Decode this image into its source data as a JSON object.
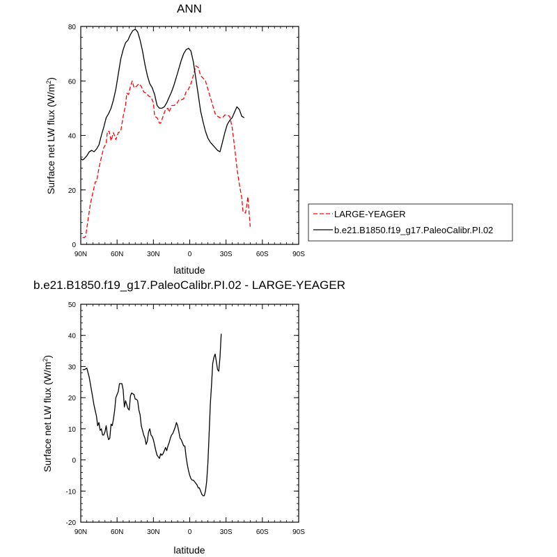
{
  "chart_data": [
    {
      "type": "line",
      "title": "ANN",
      "xlabel": "latitude",
      "ylabel": "Surface net LW flux (W/m²)",
      "xlim": [
        90,
        -90
      ],
      "ylim": [
        0,
        80
      ],
      "x_tick_values": [
        90,
        60,
        30,
        0,
        -30,
        -60,
        -90
      ],
      "x_tick_labels": [
        "90N",
        "60N",
        "30N",
        "0",
        "30S",
        "60S",
        "90S"
      ],
      "y_tick_values": [
        0,
        20,
        40,
        60,
        80
      ],
      "y_tick_labels": [
        "0",
        "20",
        "40",
        "60",
        "80"
      ],
      "legend_position": "right",
      "series": [
        {
          "name": "LARGE-YEAGER",
          "color": "#ff0000",
          "style": "dashed",
          "points": [
            [
              88.5,
              2.5
            ],
            [
              87,
              2.5
            ],
            [
              86,
              3
            ],
            [
              84,
              9
            ],
            [
              82,
              15
            ],
            [
              80,
              19
            ],
            [
              78,
              23
            ],
            [
              77,
              23
            ],
            [
              75,
              28
            ],
            [
              73,
              32
            ],
            [
              71,
              35.5
            ],
            [
              69,
              37
            ],
            [
              68,
              41.5
            ],
            [
              66.5,
              41.5
            ],
            [
              65,
              38
            ],
            [
              63,
              41
            ],
            [
              61,
              38.5
            ],
            [
              59,
              41
            ],
            [
              57,
              41.5
            ],
            [
              55,
              47
            ],
            [
              53,
              51
            ],
            [
              52,
              55.5
            ],
            [
              50.5,
              55
            ],
            [
              49,
              58
            ],
            [
              47.5,
              60
            ],
            [
              46,
              57.5
            ],
            [
              44,
              58
            ],
            [
              42,
              59
            ],
            [
              40,
              58
            ],
            [
              38,
              56
            ],
            [
              36,
              55.5
            ],
            [
              34,
              54.5
            ],
            [
              32,
              54
            ],
            [
              30,
              52
            ],
            [
              29,
              47
            ],
            [
              27,
              46.5
            ],
            [
              25,
              44.5
            ],
            [
              24,
              44.5
            ],
            [
              22,
              47
            ],
            [
              20,
              49.5
            ],
            [
              18,
              50
            ],
            [
              17,
              48.5
            ],
            [
              15,
              51
            ],
            [
              13,
              51
            ],
            [
              11,
              51.5
            ],
            [
              9,
              53
            ],
            [
              7,
              53
            ],
            [
              5,
              53.5
            ],
            [
              3,
              56
            ],
            [
              1,
              57
            ],
            [
              -1,
              59
            ],
            [
              -3,
              62
            ],
            [
              -5,
              65.5
            ],
            [
              -7,
              65
            ],
            [
              -9,
              62
            ],
            [
              -11,
              61
            ],
            [
              -13,
              60
            ],
            [
              -15,
              57
            ],
            [
              -17,
              54
            ],
            [
              -19,
              51
            ],
            [
              -21,
              48
            ],
            [
              -23,
              47
            ],
            [
              -25,
              46.5
            ],
            [
              -27,
              46.5
            ],
            [
              -29,
              47.5
            ],
            [
              -31,
              47.5
            ],
            [
              -33,
              47
            ],
            [
              -35,
              43
            ],
            [
              -37,
              36
            ],
            [
              -39,
              28
            ],
            [
              -41,
              22
            ],
            [
              -43,
              17
            ],
            [
              -44,
              12
            ],
            [
              -46,
              11.5
            ],
            [
              -47,
              14
            ],
            [
              -48,
              17.5
            ],
            [
              -50,
              6.5
            ]
          ]
        },
        {
          "name": "b.e21.B1850.f19_g17.PaleoCalibr.PI.02",
          "color": "#000000",
          "style": "solid",
          "points": [
            [
              90,
              31.5
            ],
            [
              88.5,
              31
            ],
            [
              87,
              31.5
            ],
            [
              85,
              32.5
            ],
            [
              83,
              34
            ],
            [
              81,
              34.5
            ],
            [
              79,
              34
            ],
            [
              77,
              35
            ],
            [
              75,
              36.5
            ],
            [
              73,
              40
            ],
            [
              71,
              43
            ],
            [
              69,
              46.5
            ],
            [
              67,
              48
            ],
            [
              65,
              50
            ],
            [
              63,
              53
            ],
            [
              61,
              57
            ],
            [
              59,
              62.5
            ],
            [
              57,
              68
            ],
            [
              55,
              71.5
            ],
            [
              53,
              74
            ],
            [
              51,
              75
            ],
            [
              49,
              77
            ],
            [
              47,
              78.5
            ],
            [
              45,
              79
            ],
            [
              43,
              78
            ],
            [
              41,
              75
            ],
            [
              39,
              71
            ],
            [
              37,
              66
            ],
            [
              35,
              62
            ],
            [
              33,
              59
            ],
            [
              31,
              57.5
            ],
            [
              29,
              55
            ],
            [
              27,
              51
            ],
            [
              25,
              50
            ],
            [
              23,
              50
            ],
            [
              21,
              50.5
            ],
            [
              19,
              52
            ],
            [
              17,
              54
            ],
            [
              15,
              56
            ],
            [
              13,
              58.5
            ],
            [
              11,
              61.5
            ],
            [
              9,
              64.5
            ],
            [
              7,
              67.5
            ],
            [
              5,
              70
            ],
            [
              3,
              71.5
            ],
            [
              1,
              72
            ],
            [
              -1,
              71
            ],
            [
              -3,
              67
            ],
            [
              -5,
              61
            ],
            [
              -7,
              55
            ],
            [
              -9,
              49
            ],
            [
              -11,
              45
            ],
            [
              -13,
              41.5
            ],
            [
              -15,
              39
            ],
            [
              -17,
              37.5
            ],
            [
              -19,
              36.5
            ],
            [
              -21,
              35.5
            ],
            [
              -23,
              34.5
            ],
            [
              -25,
              34
            ],
            [
              -27,
              37.5
            ],
            [
              -29,
              41
            ],
            [
              -31,
              44
            ],
            [
              -33,
              45.5
            ],
            [
              -35,
              46.5
            ],
            [
              -37,
              48.5
            ],
            [
              -39,
              50.5
            ],
            [
              -41,
              49.5
            ],
            [
              -43,
              47
            ],
            [
              -45,
              46.5
            ]
          ]
        }
      ]
    },
    {
      "type": "line",
      "title": "b.e21.B1850.f19_g17.PaleoCalibr.PI.02 - LARGE-YEAGER",
      "xlabel": "latitude",
      "ylabel": "Surface net LW flux (W/m²)",
      "xlim": [
        90,
        -90
      ],
      "ylim": [
        -20,
        50
      ],
      "x_tick_values": [
        90,
        60,
        30,
        0,
        -30,
        -60,
        -90
      ],
      "x_tick_labels": [
        "90N",
        "60N",
        "30N",
        "0",
        "30S",
        "60S",
        "90S"
      ],
      "y_tick_values": [
        -20,
        -10,
        0,
        10,
        20,
        30,
        40,
        50
      ],
      "y_tick_labels": [
        "-20",
        "-10",
        "0",
        "10",
        "20",
        "30",
        "40",
        "50"
      ],
      "series": [
        {
          "color": "#000000",
          "style": "solid",
          "points": [
            [
              88.5,
              29
            ],
            [
              87,
              29
            ],
            [
              85,
              29.5
            ],
            [
              83,
              26.5
            ],
            [
              81,
              22
            ],
            [
              79,
              17.5
            ],
            [
              77,
              14
            ],
            [
              76,
              11
            ],
            [
              75,
              12
            ],
            [
              74,
              9.5
            ],
            [
              73,
              10
            ],
            [
              72,
              8
            ],
            [
              71,
              8
            ],
            [
              70,
              9
            ],
            [
              69,
              11
            ],
            [
              68,
              8
            ],
            [
              67,
              6.5
            ],
            [
              66,
              7
            ],
            [
              65,
              11.5
            ],
            [
              64,
              11
            ],
            [
              63,
              13
            ],
            [
              62,
              16
            ],
            [
              61,
              20
            ],
            [
              59,
              22
            ],
            [
              58,
              24.5
            ],
            [
              56,
              24.5
            ],
            [
              55,
              22.5
            ],
            [
              54,
              17
            ],
            [
              53,
              19
            ],
            [
              51,
              16.5
            ],
            [
              50,
              16
            ],
            [
              49,
              20.5
            ],
            [
              48,
              21.5
            ],
            [
              46,
              21
            ],
            [
              45,
              19.5
            ],
            [
              44,
              19.5
            ],
            [
              43,
              19
            ],
            [
              42,
              16
            ],
            [
              41,
              14.5
            ],
            [
              40,
              11
            ],
            [
              38,
              8
            ],
            [
              37,
              7
            ],
            [
              36,
              5
            ],
            [
              35,
              6
            ],
            [
              34,
              9
            ],
            [
              33,
              10
            ],
            [
              32,
              8
            ],
            [
              31,
              7.5
            ],
            [
              30,
              6.5
            ],
            [
              28,
              3
            ],
            [
              27,
              1.5
            ],
            [
              26,
              1
            ],
            [
              25,
              0.5
            ],
            [
              24,
              2
            ],
            [
              23,
              1.5
            ],
            [
              22,
              2
            ],
            [
              21,
              3
            ],
            [
              20,
              4
            ],
            [
              19,
              3
            ],
            [
              18,
              4.5
            ],
            [
              17,
              5.5
            ],
            [
              16,
              7
            ],
            [
              15,
              8
            ],
            [
              14,
              8.5
            ],
            [
              12,
              10.5
            ],
            [
              11,
              12
            ],
            [
              10,
              11
            ],
            [
              9,
              9
            ],
            [
              8,
              7
            ],
            [
              7,
              6.5
            ],
            [
              6,
              5.5
            ],
            [
              5,
              4.5
            ],
            [
              4,
              4.5
            ],
            [
              3,
              1
            ],
            [
              2,
              -1.5
            ],
            [
              1,
              -3.5
            ],
            [
              0,
              -5
            ],
            [
              -1,
              -6
            ],
            [
              -2,
              -6.5
            ],
            [
              -3,
              -6.5
            ],
            [
              -4,
              -7
            ],
            [
              -5,
              -7.5
            ],
            [
              -6,
              -8
            ],
            [
              -7,
              -9
            ],
            [
              -8,
              -9
            ],
            [
              -9,
              -10
            ],
            [
              -10,
              -11
            ],
            [
              -11,
              -11.5
            ],
            [
              -12,
              -11.5
            ],
            [
              -13,
              -10
            ],
            [
              -14,
              -7
            ],
            [
              -15,
              -1
            ],
            [
              -16,
              8
            ],
            [
              -17,
              18
            ],
            [
              -18,
              24
            ],
            [
              -19,
              31
            ],
            [
              -20,
              33
            ],
            [
              -21,
              34
            ],
            [
              -22,
              31.5
            ],
            [
              -23,
              29
            ],
            [
              -24,
              28.5
            ],
            [
              -25,
              33
            ],
            [
              -26,
              40.5
            ]
          ]
        }
      ]
    }
  ]
}
